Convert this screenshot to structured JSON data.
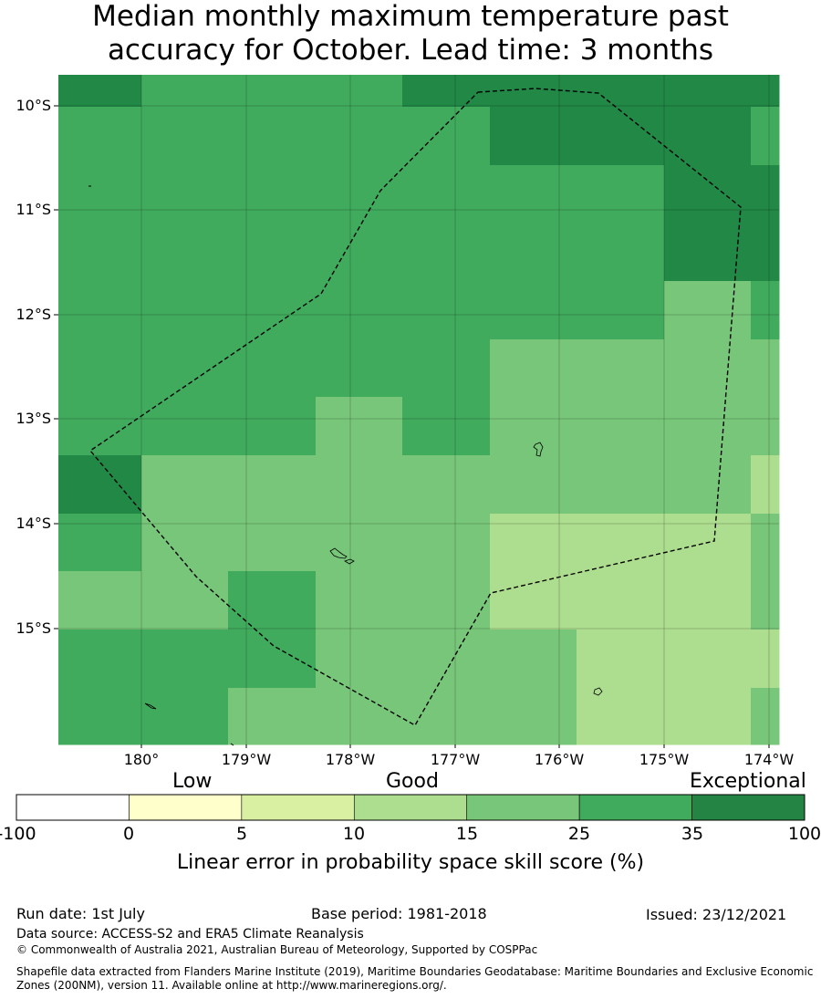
{
  "title": {
    "line1": "Median monthly maximum temperature past",
    "line2": "accuracy for October. Lead time: 3 months"
  },
  "map": {
    "lat_ticks": [
      "10°S",
      "11°S",
      "12°S",
      "13°S",
      "14°S",
      "15°S"
    ],
    "lon_ticks": [
      "180°",
      "179°W",
      "178°W",
      "177°W",
      "176°W",
      "175°W",
      "174°W"
    ],
    "grid_lines": true,
    "boundary_style": "dashed",
    "cell_colors": {
      "35-100": "#228846",
      "25-35": "#41ab5d",
      "15-25": "#78c679",
      "10-15": "#addd8e"
    }
  },
  "colorbar": {
    "categories": [
      "Low",
      "Good",
      "Exceptional"
    ],
    "tick_labels": [
      "-100",
      "0",
      "5",
      "10",
      "15",
      "25",
      "35",
      "100"
    ],
    "colors": [
      "#ffffff",
      "#ffffcc",
      "#d9f0a3",
      "#addd8e",
      "#78c679",
      "#41ab5d",
      "#238443"
    ],
    "label": "Linear error in probability space skill score (%)"
  },
  "footer": {
    "run_date": "Run date: 1st July",
    "base_period": "Base period: 1981-2018",
    "issued": "Issued: 23/12/2021",
    "data_source": "Data source: ACCESS-S2 and ERA5 Climate Reanalysis",
    "copyright": "© Commonwealth of Australia 2021, Australian Bureau of Meteorology, Supported by COSPPac",
    "shapefile_line1": "Shapefile data extracted from Flanders Marine Institute (2019), Maritime Boundaries Geodatabase: Maritime Boundaries and Exclusive Economic",
    "shapefile_line2": "Zones (200NM), version 11. Available online at http://www.marineregions.org/."
  }
}
